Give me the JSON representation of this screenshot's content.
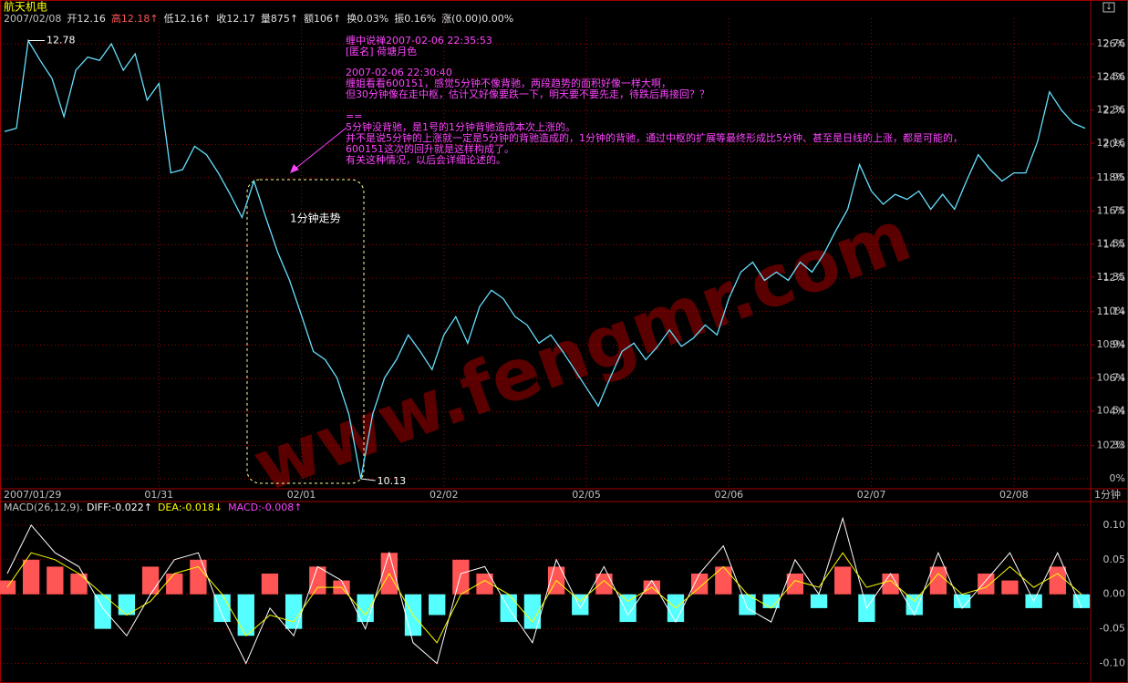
{
  "header": {
    "title": "航天机电",
    "period": "1分钟",
    "info": [
      {
        "text": "2007/02/08",
        "color": "#c0c0c0"
      },
      {
        "text": "开12.16",
        "color": "#e0e0e0"
      },
      {
        "text": "高12.18↑",
        "color": "#ff5555"
      },
      {
        "text": "低12.16↑",
        "color": "#e0e0e0"
      },
      {
        "text": "收12.17",
        "color": "#e0e0e0"
      },
      {
        "text": "量875↑",
        "color": "#e0e0e0"
      },
      {
        "text": "额106↑",
        "color": "#e0e0e0"
      },
      {
        "text": "换0.03%",
        "color": "#e0e0e0"
      },
      {
        "text": "振0.16%",
        "color": "#e0e0e0"
      },
      {
        "text": "涨(0.00)0.00%",
        "color": "#e0e0e0"
      }
    ]
  },
  "comment": {
    "color": "#ff44ff",
    "lines": [
      "缠中说禅2007-02-06 22:35:53",
      "[匿名] 荷塘月色",
      "2007-02-06 22:30:40",
      "缠姐看看600151，感觉5分钟不像背驰，两段趋势的面积好像一样大啊，",
      "但30分钟像在走中枢，估计又好像要跌一下，明天要不要先走，待跌后再接回？？",
      "==",
      "5分钟没背驰，是1号的1分钟背驰造成本次上涨的。",
      "并不是说5分钟的上涨就一定是5分钟的背驰造成的，1分钟的背驰，通过中枢的扩展等最终形成比5分钟、甚至是日线的上涨，都是可能的，",
      "600151这次的回升就是这样构成了。",
      "有关这种情况，以后会详细论述的。"
    ]
  },
  "box_label": "1分钟走势",
  "watermark": "www.fengmr.com",
  "chart_data": [
    {
      "type": "line",
      "high_label": "12.78",
      "low_label": "10.13",
      "categories": [
        "2007/01/29",
        null,
        null,
        null,
        null,
        null,
        null,
        null,
        null,
        null,
        null,
        null,
        null,
        "01/31",
        null,
        null,
        null,
        null,
        null,
        null,
        null,
        null,
        null,
        null,
        null,
        "02/01",
        null,
        null,
        null,
        null,
        null,
        null,
        null,
        null,
        null,
        null,
        null,
        "02/02",
        null,
        null,
        null,
        null,
        null,
        null,
        null,
        null,
        null,
        null,
        null,
        "02/05",
        null,
        null,
        null,
        null,
        null,
        null,
        null,
        null,
        null,
        null,
        null,
        "02/06",
        null,
        null,
        null,
        null,
        null,
        null,
        null,
        null,
        null,
        null,
        null,
        "02/07",
        null,
        null,
        null,
        null,
        null,
        null,
        null,
        null,
        null,
        null,
        null,
        "02/08",
        null,
        null,
        null,
        null,
        null,
        null
      ],
      "series": [
        {
          "color": "#66e0ff",
          "values": [
            12.23,
            12.25,
            12.78,
            12.66,
            12.55,
            12.32,
            12.6,
            12.68,
            12.66,
            12.76,
            12.6,
            12.7,
            12.42,
            12.52,
            11.98,
            12.0,
            12.14,
            12.09,
            11.98,
            11.85,
            11.71,
            11.93,
            11.71,
            11.5,
            11.33,
            11.12,
            10.9,
            10.85,
            10.74,
            10.52,
            10.13,
            10.52,
            10.74,
            10.85,
            11.0,
            10.9,
            10.79,
            11.0,
            11.11,
            10.95,
            11.17,
            11.27,
            11.22,
            11.11,
            11.06,
            10.95,
            11.0,
            10.9,
            10.79,
            10.68,
            10.57,
            10.74,
            10.9,
            10.95,
            10.85,
            10.93,
            11.03,
            10.93,
            10.98,
            11.06,
            11.0,
            11.22,
            11.38,
            11.44,
            11.33,
            11.38,
            11.33,
            11.44,
            11.38,
            11.49,
            11.63,
            11.76,
            12.03,
            11.87,
            11.79,
            11.85,
            11.82,
            11.87,
            11.76,
            11.85,
            11.76,
            11.93,
            12.09,
            12.0,
            11.93,
            11.98,
            11.98,
            12.17,
            12.47,
            12.36,
            12.28,
            12.25
          ]
        }
      ],
      "ylim": [
        10.13,
        12.86
      ],
      "yticks": [
        {
          "value": 12.76,
          "label": "12.76"
        },
        {
          "value": 12.56,
          "label": "12.56"
        },
        {
          "value": 12.36,
          "label": "12.36"
        },
        {
          "value": 12.16,
          "label": "12.16"
        },
        {
          "value": 11.95,
          "label": "11.95"
        },
        {
          "value": 11.75,
          "label": "11.75"
        },
        {
          "value": 11.55,
          "label": "11.55"
        },
        {
          "value": 11.35,
          "label": "11.35"
        },
        {
          "value": 11.14,
          "label": "11.14"
        },
        {
          "value": 10.94,
          "label": "10.94"
        },
        {
          "value": 10.74,
          "label": "10.74"
        },
        {
          "value": 10.54,
          "label": "10.54"
        },
        {
          "value": 10.33,
          "label": "10.33"
        }
      ],
      "y2lim": [
        0,
        27
      ],
      "y2ticks": [
        {
          "value": 26,
          "label": "26%"
        },
        {
          "value": 24,
          "label": "24%"
        },
        {
          "value": 22,
          "label": "22%"
        },
        {
          "value": 20,
          "label": "20%"
        },
        {
          "value": 18,
          "label": "18%"
        },
        {
          "value": 16,
          "label": "16%"
        },
        {
          "value": 14,
          "label": "14%"
        },
        {
          "value": 12,
          "label": "12%"
        },
        {
          "value": 10,
          "label": "10%"
        },
        {
          "value": 8,
          "label": "8%"
        },
        {
          "value": 6,
          "label": "6%"
        },
        {
          "value": 4,
          "label": "4%"
        },
        {
          "value": 2,
          "label": "2%"
        },
        {
          "value": 0,
          "label": "0%"
        }
      ],
      "grid": true
    },
    {
      "type": "bar",
      "title": "MACD(26,12,9).",
      "series": [
        {
          "name": "DIFF:-0.022↑",
          "kind": "line",
          "color": "#ffffff",
          "values": [
            0.03,
            0.1,
            0.06,
            0.04,
            -0.02,
            -0.06,
            0.0,
            0.05,
            0.06,
            -0.03,
            -0.1,
            -0.02,
            -0.06,
            0.04,
            0.02,
            -0.05,
            0.06,
            -0.07,
            -0.1,
            0.03,
            0.04,
            -0.02,
            -0.07,
            0.05,
            -0.02,
            0.04,
            -0.03,
            0.02,
            -0.04,
            0.03,
            0.07,
            -0.02,
            -0.04,
            0.05,
            0.0,
            0.11,
            -0.02,
            0.03,
            -0.03,
            0.06,
            -0.02,
            0.02,
            0.06,
            -0.01,
            0.06,
            -0.02
          ]
        },
        {
          "name": "DEA:-0.018↓",
          "kind": "line",
          "color": "#ffff00",
          "values": [
            0.01,
            0.06,
            0.05,
            0.03,
            0.0,
            -0.03,
            -0.01,
            0.03,
            0.04,
            0.0,
            -0.06,
            -0.03,
            -0.04,
            0.01,
            0.01,
            -0.03,
            0.03,
            -0.03,
            -0.07,
            0.0,
            0.02,
            0.0,
            -0.04,
            0.02,
            -0.01,
            0.02,
            -0.01,
            0.01,
            -0.02,
            0.01,
            0.04,
            0.0,
            -0.02,
            0.02,
            0.01,
            0.06,
            0.01,
            0.02,
            -0.01,
            0.03,
            0.0,
            0.01,
            0.04,
            0.01,
            0.03,
            0.0
          ]
        },
        {
          "name": "MACD:-0.008↑",
          "kind": "bar",
          "color": "#ff5555",
          "negative_color": "#55ffff",
          "legend_color": "#ff44ff",
          "values": [
            0.02,
            0.05,
            0.04,
            0.03,
            -0.05,
            -0.03,
            0.04,
            0.03,
            0.05,
            -0.04,
            -0.06,
            0.03,
            -0.05,
            0.04,
            0.02,
            -0.04,
            0.06,
            -0.06,
            -0.03,
            0.05,
            0.03,
            -0.04,
            -0.05,
            0.04,
            -0.03,
            0.03,
            -0.04,
            0.02,
            -0.04,
            0.03,
            0.04,
            -0.03,
            -0.02,
            0.03,
            -0.02,
            0.04,
            -0.04,
            0.03,
            -0.03,
            0.04,
            -0.02,
            0.03,
            0.02,
            -0.02,
            0.04,
            -0.02
          ]
        }
      ],
      "ylim": [
        -0.123,
        0.117
      ],
      "yticks": [
        {
          "value": 0.1,
          "label": "0.10"
        },
        {
          "value": 0.05,
          "label": "0.05"
        },
        {
          "value": 0,
          "label": "0.00"
        },
        {
          "value": -0.05,
          "label": "-0.05"
        },
        {
          "value": -0.1,
          "label": "-0.10"
        }
      ]
    }
  ]
}
